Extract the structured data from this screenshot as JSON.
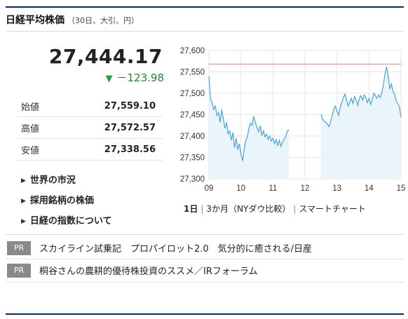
{
  "header": {
    "title": "日経平均株価",
    "subtitle": "（30日、大引、円）"
  },
  "quote": {
    "price": "27,444.17",
    "change_symbol": "▼",
    "change_value": "－123.98",
    "change_color": "#2e7d32"
  },
  "ohl": [
    {
      "label": "始値",
      "value": "27,559.10"
    },
    {
      "label": "高値",
      "value": "27,572.57"
    },
    {
      "label": "安値",
      "value": "27,338.56"
    }
  ],
  "links": [
    {
      "label": "世界の市況",
      "icon": "triangle-right-icon"
    },
    {
      "label": "採用銘柄の株価",
      "icon": "triangle-right-icon"
    },
    {
      "label": "日経の指数について",
      "icon": "triangle-right-icon"
    }
  ],
  "range_options": {
    "selected": "1日",
    "three_month": "3か月（NYダウ比較）",
    "smart_chart": "スマートチャート",
    "separator": "|"
  },
  "pr": [
    {
      "badge": "PR",
      "text": "スカイライン試乗記　プロパイロット2.0　気分的に癒される/日産"
    },
    {
      "badge": "PR",
      "text": "桐谷さんの農耕的優待株投資のススメ／IRフォーラム"
    }
  ],
  "chart_data": {
    "type": "line",
    "title": "",
    "xlabel": "",
    "ylabel": "",
    "x_ticks": [
      "09",
      "10",
      "11",
      "12",
      "13",
      "14",
      "15"
    ],
    "y_ticks": [
      "27,600",
      "27,550",
      "27,500",
      "27,450",
      "27,400",
      "27,350",
      "27,300"
    ],
    "ylim": [
      27300,
      27600
    ],
    "xlim": [
      9,
      15
    ],
    "reference_line": {
      "value": 27568,
      "color": "#e8a0a8"
    },
    "line_color": "#4aa3d8",
    "area_color": "#eaf4fb",
    "grid": true,
    "series": [
      {
        "segments": [
          [
            [
              9.0,
              27540
            ],
            [
              9.05,
              27485
            ],
            [
              9.1,
              27478
            ],
            [
              9.15,
              27462
            ],
            [
              9.2,
              27470
            ],
            [
              9.25,
              27448
            ],
            [
              9.3,
              27455
            ],
            [
              9.35,
              27432
            ],
            [
              9.4,
              27462
            ],
            [
              9.45,
              27440
            ],
            [
              9.5,
              27418
            ],
            [
              9.55,
              27432
            ],
            [
              9.6,
              27405
            ],
            [
              9.65,
              27412
            ],
            [
              9.7,
              27390
            ],
            [
              9.75,
              27408
            ],
            [
              9.8,
              27372
            ],
            [
              9.85,
              27395
            ],
            [
              9.9,
              27368
            ],
            [
              9.95,
              27382
            ],
            [
              10.0,
              27358
            ],
            [
              10.05,
              27342
            ],
            [
              10.1,
              27368
            ],
            [
              10.15,
              27390
            ],
            [
              10.2,
              27398
            ],
            [
              10.25,
              27418
            ],
            [
              10.3,
              27430
            ],
            [
              10.35,
              27425
            ],
            [
              10.4,
              27446
            ],
            [
              10.45,
              27432
            ],
            [
              10.5,
              27420
            ],
            [
              10.55,
              27410
            ],
            [
              10.6,
              27424
            ],
            [
              10.65,
              27402
            ],
            [
              10.7,
              27412
            ],
            [
              10.75,
              27398
            ],
            [
              10.8,
              27404
            ],
            [
              10.85,
              27392
            ],
            [
              10.9,
              27400
            ],
            [
              10.95,
              27388
            ],
            [
              11.0,
              27395
            ],
            [
              11.05,
              27382
            ],
            [
              11.1,
              27392
            ],
            [
              11.15,
              27378
            ],
            [
              11.2,
              27390
            ],
            [
              11.25,
              27376
            ],
            [
              11.3,
              27385
            ],
            [
              11.35,
              27394
            ],
            [
              11.4,
              27398
            ],
            [
              11.45,
              27412
            ],
            [
              11.5,
              27414
            ]
          ],
          [
            [
              12.5,
              27450
            ],
            [
              12.55,
              27440
            ],
            [
              12.6,
              27435
            ],
            [
              12.65,
              27432
            ],
            [
              12.7,
              27428
            ],
            [
              12.75,
              27422
            ],
            [
              12.8,
              27434
            ],
            [
              12.85,
              27448
            ],
            [
              12.9,
              27462
            ],
            [
              12.95,
              27470
            ],
            [
              13.0,
              27458
            ],
            [
              13.05,
              27448
            ],
            [
              13.1,
              27468
            ],
            [
              13.15,
              27478
            ],
            [
              13.2,
              27490
            ],
            [
              13.25,
              27498
            ],
            [
              13.3,
              27484
            ],
            [
              13.35,
              27470
            ],
            [
              13.4,
              27480
            ],
            [
              13.45,
              27488
            ],
            [
              13.5,
              27476
            ],
            [
              13.55,
              27492
            ],
            [
              13.6,
              27484
            ],
            [
              13.65,
              27472
            ],
            [
              13.7,
              27488
            ],
            [
              13.75,
              27494
            ],
            [
              13.8,
              27484
            ],
            [
              13.85,
              27496
            ],
            [
              13.9,
              27490
            ],
            [
              13.95,
              27478
            ],
            [
              14.0,
              27488
            ],
            [
              14.05,
              27474
            ],
            [
              14.1,
              27484
            ],
            [
              14.15,
              27500
            ],
            [
              14.2,
              27494
            ],
            [
              14.25,
              27488
            ],
            [
              14.3,
              27496
            ],
            [
              14.35,
              27490
            ],
            [
              14.4,
              27500
            ],
            [
              14.45,
              27520
            ],
            [
              14.5,
              27545
            ],
            [
              14.55,
              27562
            ],
            [
              14.6,
              27540
            ],
            [
              14.65,
              27510
            ],
            [
              14.7,
              27522
            ],
            [
              14.75,
              27504
            ],
            [
              14.8,
              27498
            ],
            [
              14.85,
              27482
            ],
            [
              14.9,
              27476
            ],
            [
              14.95,
              27468
            ],
            [
              15.0,
              27444
            ]
          ]
        ]
      }
    ]
  }
}
